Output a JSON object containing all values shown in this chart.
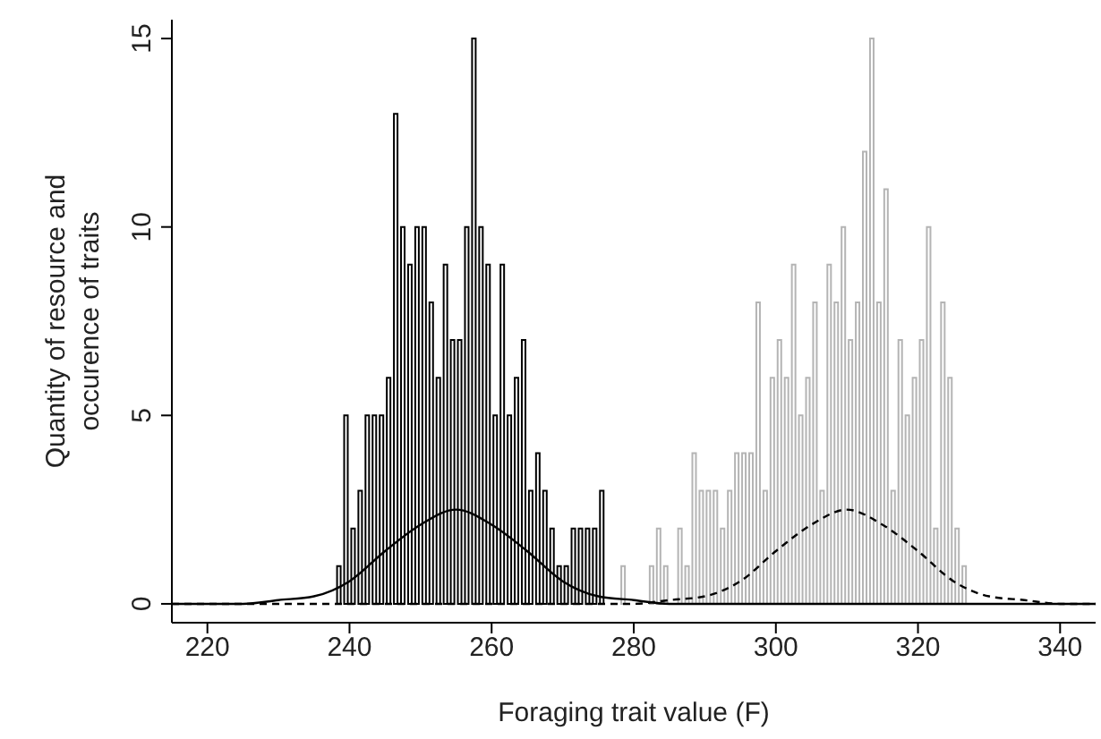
{
  "chart_data": {
    "type": "histogram",
    "xlabel": "Foraging trait value (F)",
    "ylabel": "Quantity of resource and occurence of traits",
    "xlim": [
      215,
      345
    ],
    "xticks": [
      220,
      240,
      260,
      280,
      300,
      320,
      340
    ],
    "ylim": [
      -0.5,
      15.5
    ],
    "yticks": [
      0,
      5,
      10,
      15
    ],
    "series": [
      {
        "color": "#000000",
        "bins": [
          238,
          239,
          240,
          241,
          242,
          243,
          244,
          245,
          246,
          247,
          248,
          249,
          250,
          251,
          252,
          253,
          254,
          255,
          256,
          257,
          258,
          259,
          260,
          261,
          262,
          263,
          264,
          265,
          266,
          267,
          268,
          269,
          270,
          271,
          272,
          273,
          274,
          275,
          276
        ],
        "values": [
          1,
          5,
          2,
          3,
          5,
          5,
          5,
          6,
          13,
          10,
          9,
          10,
          10,
          8,
          6,
          9,
          7,
          7,
          10,
          15,
          10,
          9,
          5,
          9,
          5,
          6,
          7,
          3,
          4,
          3,
          2,
          1,
          1,
          2,
          2,
          2,
          2,
          3
        ]
      },
      {
        "color": "#b4b4b4",
        "bins": [
          278,
          279,
          280,
          281,
          282,
          283,
          284,
          285,
          286,
          287,
          288,
          289,
          290,
          291,
          292,
          293,
          294,
          295,
          296,
          297,
          298,
          299,
          300,
          301,
          302,
          303,
          304,
          305,
          306,
          307,
          308,
          309,
          310,
          311,
          312,
          313,
          314,
          315,
          316,
          317,
          318,
          319,
          320,
          321,
          322,
          323,
          324,
          325,
          326,
          327
        ],
        "values": [
          1,
          0,
          0,
          0,
          1,
          2,
          1,
          0,
          2,
          1,
          4,
          3,
          3,
          3,
          2,
          3,
          4,
          4,
          4,
          8,
          3,
          6,
          7,
          6,
          9,
          5,
          6,
          8,
          3,
          9,
          8,
          10,
          7,
          8,
          12,
          15,
          8,
          11,
          3,
          7,
          5,
          6,
          7,
          10,
          2,
          8,
          6,
          2,
          1
        ]
      },
      {
        "type": "line",
        "color": "#000000",
        "line_style": "solid",
        "x": [
          215,
          220,
          225,
          230,
          235,
          240,
          245,
          250,
          255,
          260,
          265,
          270,
          275,
          280,
          285,
          290,
          300,
          320,
          345
        ],
        "values": [
          0,
          0,
          0,
          0.1,
          0.2,
          0.6,
          1.4,
          2.1,
          2.5,
          2.1,
          1.4,
          0.6,
          0.2,
          0.1,
          0,
          0,
          0,
          0,
          0
        ]
      },
      {
        "type": "line",
        "color": "#000000",
        "line_style": "dashed",
        "x": [
          215,
          240,
          260,
          270,
          280,
          285,
          290,
          295,
          300,
          305,
          310,
          315,
          320,
          325,
          330,
          335,
          340,
          345
        ],
        "values": [
          0,
          0,
          0,
          0,
          0,
          0.1,
          0.2,
          0.6,
          1.4,
          2.1,
          2.5,
          2.1,
          1.4,
          0.6,
          0.2,
          0.1,
          0,
          0
        ]
      }
    ]
  }
}
